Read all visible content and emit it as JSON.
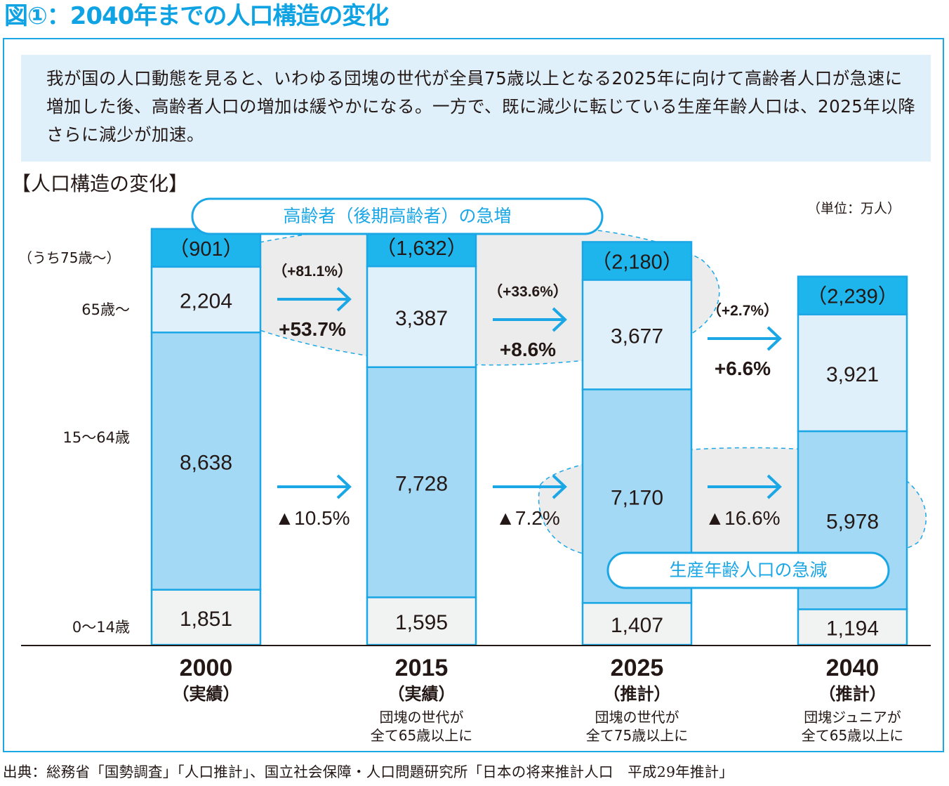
{
  "title": "図①：2040年までの人口構造の変化",
  "summary": "我が国の人口動態を見ると、いわゆる団塊の世代が全員75歳以上となる2025年に向けて高齢者人口が急速に増加した後、高齢者人口の増加は緩やかになる。一方で、既に減少に転じている生産年齢人口は、2025年以降さらに減少が加速。",
  "footnote": "出典：総務省「国勢調査」「人口推計」、国立社会保障・人口問題研究所「日本の将来推計人口　平成29年推計」",
  "colors": {
    "accent": "#1ba7e6",
    "age75": "#1eb4ec",
    "age65": "#dff0fb",
    "age15_64": "#a4d9f5",
    "age0_14": "#f1f2f2",
    "highlight": "#ececec"
  },
  "chart_data": {
    "type": "bar",
    "stacked": true,
    "title": "【人口構造の変化】",
    "unit_label": "（単位：万人）",
    "categories": [
      "2000",
      "2015",
      "2025",
      "2040"
    ],
    "category_notes": [
      "（実績）",
      "（実績）",
      "（推計）",
      "（推計）"
    ],
    "category_descriptions": [
      [],
      [
        "団塊の世代が",
        "全て65歳以上に"
      ],
      [
        "団塊の世代が",
        "全て75歳以上に"
      ],
      [
        "団塊ジュニアが",
        "全て65歳以上に"
      ]
    ],
    "row_labels": {
      "age75": "（うち75歳〜）",
      "age65": "65歳〜",
      "age15_64": "15〜64歳",
      "age0_14": "0〜14歳"
    },
    "series": [
      {
        "name": "0〜14歳",
        "key": "age0_14",
        "values": [
          1851,
          1595,
          1407,
          1194
        ],
        "labels": [
          "1,851",
          "1,595",
          "1,407",
          "1,194"
        ]
      },
      {
        "name": "15〜64歳",
        "key": "age15_64",
        "values": [
          8638,
          7728,
          7170,
          5978
        ],
        "labels": [
          "8,638",
          "7,728",
          "7,170",
          "5,978"
        ]
      },
      {
        "name": "65歳〜",
        "key": "age65",
        "values": [
          2204,
          3387,
          3677,
          3921
        ],
        "labels": [
          "2,204",
          "3,387",
          "3,677",
          "3,921"
        ]
      },
      {
        "name": "（うち75歳〜）",
        "key": "age75",
        "values": [
          901,
          1632,
          2180,
          2239
        ],
        "labels": [
          "（901）",
          "（1,632）",
          "（2,180）",
          "（2,239）"
        ]
      }
    ],
    "changes": [
      {
        "from": "2000",
        "to": "2015",
        "age75": "（+81.1%）",
        "age65": "+53.7%",
        "age15_64": "▲10.5%"
      },
      {
        "from": "2015",
        "to": "2025",
        "age75": "（+33.6%）",
        "age65": "+8.6%",
        "age15_64": "▲7.2%"
      },
      {
        "from": "2025",
        "to": "2040",
        "age75": "（+2.7%）",
        "age65": "+6.6%",
        "age15_64": "▲16.6%"
      }
    ],
    "callouts": {
      "elderly": "高齢者（後期高齢者）の急増",
      "working": "生産年齢人口の急減"
    }
  }
}
